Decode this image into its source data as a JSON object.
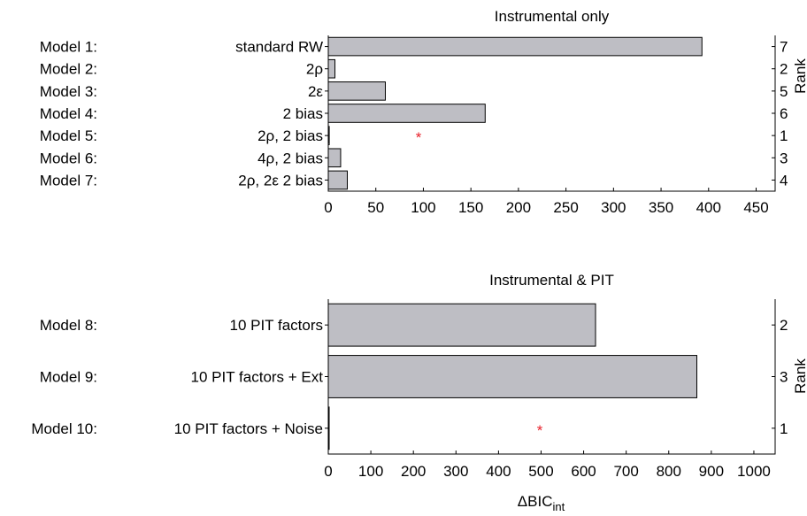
{
  "chart_data": [
    {
      "type": "bar",
      "orientation": "horizontal",
      "title": "Instrumental only",
      "model_labels": [
        "Model 1:",
        "Model 2:",
        "Model 3:",
        "Model 4:",
        "Model 5:",
        "Model 6:",
        "Model 7:"
      ],
      "categories": [
        "standard RW",
        "2ρ",
        "2ε",
        "2 bias",
        "2ρ, 2 bias",
        "4ρ, 2 bias",
        "2ρ, 2ε 2 bias"
      ],
      "values": [
        393,
        7,
        60,
        165,
        1,
        13,
        20
      ],
      "ranks": [
        "7",
        "2",
        "5",
        "6",
        "1",
        "3",
        "4"
      ],
      "rank_label": "Rank",
      "best_marker_index": 4,
      "best_marker_x": 95,
      "best_marker_symbol": "*",
      "xlim": [
        0,
        470
      ],
      "xticks": [
        0,
        50,
        100,
        150,
        200,
        250,
        300,
        350,
        400,
        450
      ],
      "grid": false
    },
    {
      "type": "bar",
      "orientation": "horizontal",
      "title": "Instrumental & PIT",
      "model_labels": [
        "Model 8:",
        "Model 9:",
        "Model 10:"
      ],
      "categories": [
        "10 PIT factors",
        "10 PIT factors + Ext",
        "10 PIT factors + Noise"
      ],
      "values": [
        628,
        866,
        1
      ],
      "ranks": [
        "2",
        "3",
        "1"
      ],
      "rank_label": "Rank",
      "best_marker_index": 2,
      "best_marker_x": 497,
      "best_marker_symbol": "*",
      "xlim": [
        0,
        1050
      ],
      "xticks": [
        0,
        100,
        200,
        300,
        400,
        500,
        600,
        700,
        800,
        900,
        1000
      ],
      "xlabel_main": "ΔBIC",
      "xlabel_sub": "int",
      "grid": false
    }
  ],
  "colors": {
    "bar_fill": "#bebec4",
    "marker": "#e8202a"
  }
}
